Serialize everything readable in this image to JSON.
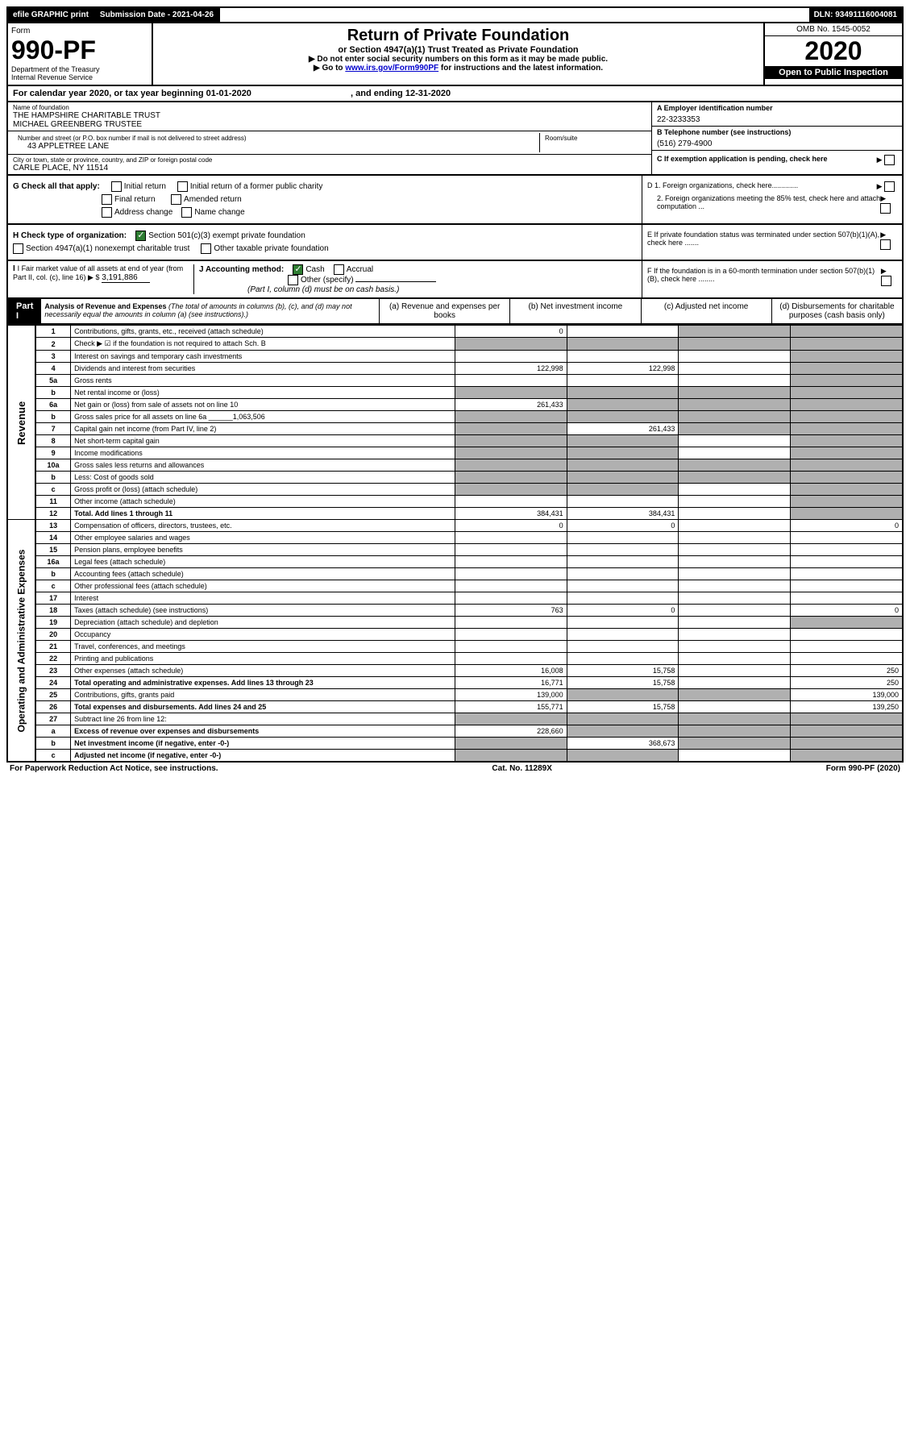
{
  "top_bar": {
    "efile": "efile GRAPHIC print",
    "submission": "Submission Date - 2021-04-26",
    "dln": "DLN: 93491116004081"
  },
  "header": {
    "form_label": "Form",
    "form_number": "990-PF",
    "dept": "Department of the Treasury",
    "irs": "Internal Revenue Service",
    "title": "Return of Private Foundation",
    "subtitle": "or Section 4947(a)(1) Trust Treated as Private Foundation",
    "note1": "▶ Do not enter social security numbers on this form as it may be made public.",
    "note2_pre": "▶ Go to ",
    "note2_link": "www.irs.gov/Form990PF",
    "note2_post": " for instructions and the latest information.",
    "omb": "OMB No. 1545-0052",
    "year": "2020",
    "open": "Open to Public Inspection"
  },
  "cal_year": {
    "text_pre": "For calendar year 2020, or tax year beginning ",
    "begin": "01-01-2020",
    "text_mid": " , and ending ",
    "end": "12-31-2020"
  },
  "org": {
    "name_label": "Name of foundation",
    "name1": "THE HAMPSHIRE CHARITABLE TRUST",
    "name2": "MICHAEL GREENBERG TRUSTEE",
    "addr_label": "Number and street (or P.O. box number if mail is not delivered to street address)",
    "addr": "43 APPLETREE LANE",
    "room_label": "Room/suite",
    "city_label": "City or town, state or province, country, and ZIP or foreign postal code",
    "city": "CARLE PLACE, NY  11514",
    "ein_label": "A Employer identification number",
    "ein": "22-3233353",
    "phone_label": "B Telephone number (see instructions)",
    "phone": "(516) 279-4900",
    "c_label": "C If exemption application is pending, check here"
  },
  "sectionG": {
    "label": "G Check all that apply:",
    "opts": {
      "initial": "Initial return",
      "initial_former": "Initial return of a former public charity",
      "final": "Final return",
      "amended": "Amended return",
      "address": "Address change",
      "name": "Name change"
    }
  },
  "sectionH": {
    "label": "H Check type of organization:",
    "opt1": "Section 501(c)(3) exempt private foundation",
    "opt2": "Section 4947(a)(1) nonexempt charitable trust",
    "opt3": "Other taxable private foundation"
  },
  "sectionD": {
    "d1": "D 1. Foreign organizations, check here.............",
    "d2": "2. Foreign organizations meeting the 85% test, check here and attach computation ...",
    "e": "E  If private foundation status was terminated under section 507(b)(1)(A), check here .......",
    "f": "F  If the foundation is in a 60-month termination under section 507(b)(1)(B), check here ........"
  },
  "sectionI": {
    "label": "I Fair market value of all assets at end of year (from Part II, col. (c), line 16) ▶ $",
    "value": "3,191,886"
  },
  "sectionJ": {
    "label": "J Accounting method:",
    "cash": "Cash",
    "accrual": "Accrual",
    "other": "Other (specify)",
    "note": "(Part I, column (d) must be on cash basis.)"
  },
  "part1": {
    "label": "Part I",
    "title": "Analysis of Revenue and Expenses",
    "subtitle": "(The total of amounts in columns (b), (c), and (d) may not necessarily equal the amounts in column (a) (see instructions).)",
    "cols": {
      "a": "(a)   Revenue and expenses per books",
      "b": "(b)   Net investment income",
      "c": "(c)   Adjusted net income",
      "d": "(d)   Disbursements for charitable purposes (cash basis only)"
    }
  },
  "side_labels": {
    "revenue": "Revenue",
    "expenses": "Operating and Administrative Expenses"
  },
  "rows": [
    {
      "n": "1",
      "desc": "Contributions, gifts, grants, etc., received (attach schedule)",
      "a": "0",
      "b": "",
      "c": "g",
      "d": "g"
    },
    {
      "n": "2",
      "desc": "Check ▶ ☑ if the foundation is not required to attach Sch. B",
      "a": "g",
      "b": "g",
      "c": "g",
      "d": "g"
    },
    {
      "n": "3",
      "desc": "Interest on savings and temporary cash investments",
      "a": "",
      "b": "",
      "c": "",
      "d": "g"
    },
    {
      "n": "4",
      "desc": "Dividends and interest from securities",
      "a": "122,998",
      "b": "122,998",
      "c": "",
      "d": "g"
    },
    {
      "n": "5a",
      "desc": "Gross rents",
      "a": "",
      "b": "",
      "c": "",
      "d": "g"
    },
    {
      "n": "b",
      "desc": "Net rental income or (loss)",
      "a": "g",
      "b": "g",
      "c": "g",
      "d": "g"
    },
    {
      "n": "6a",
      "desc": "Net gain or (loss) from sale of assets not on line 10",
      "a": "261,433",
      "b": "g",
      "c": "g",
      "d": "g"
    },
    {
      "n": "b",
      "desc": "Gross sales price for all assets on line 6a ______1,063,506",
      "a": "g",
      "b": "g",
      "c": "g",
      "d": "g"
    },
    {
      "n": "7",
      "desc": "Capital gain net income (from Part IV, line 2)",
      "a": "g",
      "b": "261,433",
      "c": "g",
      "d": "g"
    },
    {
      "n": "8",
      "desc": "Net short-term capital gain",
      "a": "g",
      "b": "g",
      "c": "",
      "d": "g"
    },
    {
      "n": "9",
      "desc": "Income modifications",
      "a": "g",
      "b": "g",
      "c": "",
      "d": "g"
    },
    {
      "n": "10a",
      "desc": "Gross sales less returns and allowances",
      "a": "g",
      "b": "g",
      "c": "g",
      "d": "g"
    },
    {
      "n": "b",
      "desc": "Less: Cost of goods sold",
      "a": "g",
      "b": "g",
      "c": "g",
      "d": "g"
    },
    {
      "n": "c",
      "desc": "Gross profit or (loss) (attach schedule)",
      "a": "g",
      "b": "g",
      "c": "",
      "d": "g"
    },
    {
      "n": "11",
      "desc": "Other income (attach schedule)",
      "a": "",
      "b": "",
      "c": "",
      "d": "g"
    },
    {
      "n": "12",
      "desc": "Total. Add lines 1 through 11",
      "a": "384,431",
      "b": "384,431",
      "c": "",
      "d": "g",
      "bold": true
    },
    {
      "n": "13",
      "desc": "Compensation of officers, directors, trustees, etc.",
      "a": "0",
      "b": "0",
      "c": "",
      "d": "0"
    },
    {
      "n": "14",
      "desc": "Other employee salaries and wages",
      "a": "",
      "b": "",
      "c": "",
      "d": ""
    },
    {
      "n": "15",
      "desc": "Pension plans, employee benefits",
      "a": "",
      "b": "",
      "c": "",
      "d": ""
    },
    {
      "n": "16a",
      "desc": "Legal fees (attach schedule)",
      "a": "",
      "b": "",
      "c": "",
      "d": ""
    },
    {
      "n": "b",
      "desc": "Accounting fees (attach schedule)",
      "a": "",
      "b": "",
      "c": "",
      "d": ""
    },
    {
      "n": "c",
      "desc": "Other professional fees (attach schedule)",
      "a": "",
      "b": "",
      "c": "",
      "d": ""
    },
    {
      "n": "17",
      "desc": "Interest",
      "a": "",
      "b": "",
      "c": "",
      "d": ""
    },
    {
      "n": "18",
      "desc": "Taxes (attach schedule) (see instructions)",
      "a": "763",
      "b": "0",
      "c": "",
      "d": "0"
    },
    {
      "n": "19",
      "desc": "Depreciation (attach schedule) and depletion",
      "a": "",
      "b": "",
      "c": "",
      "d": "g"
    },
    {
      "n": "20",
      "desc": "Occupancy",
      "a": "",
      "b": "",
      "c": "",
      "d": ""
    },
    {
      "n": "21",
      "desc": "Travel, conferences, and meetings",
      "a": "",
      "b": "",
      "c": "",
      "d": ""
    },
    {
      "n": "22",
      "desc": "Printing and publications",
      "a": "",
      "b": "",
      "c": "",
      "d": ""
    },
    {
      "n": "23",
      "desc": "Other expenses (attach schedule)",
      "a": "16,008",
      "b": "15,758",
      "c": "",
      "d": "250"
    },
    {
      "n": "24",
      "desc": "Total operating and administrative expenses. Add lines 13 through 23",
      "a": "16,771",
      "b": "15,758",
      "c": "",
      "d": "250",
      "bold": true
    },
    {
      "n": "25",
      "desc": "Contributions, gifts, grants paid",
      "a": "139,000",
      "b": "g",
      "c": "g",
      "d": "139,000"
    },
    {
      "n": "26",
      "desc": "Total expenses and disbursements. Add lines 24 and 25",
      "a": "155,771",
      "b": "15,758",
      "c": "",
      "d": "139,250",
      "bold": true
    },
    {
      "n": "27",
      "desc": "Subtract line 26 from line 12:",
      "a": "g",
      "b": "g",
      "c": "g",
      "d": "g"
    },
    {
      "n": "a",
      "desc": "Excess of revenue over expenses and disbursements",
      "a": "228,660",
      "b": "g",
      "c": "g",
      "d": "g",
      "bold": true
    },
    {
      "n": "b",
      "desc": "Net investment income (if negative, enter -0-)",
      "a": "g",
      "b": "368,673",
      "c": "g",
      "d": "g",
      "bold": true
    },
    {
      "n": "c",
      "desc": "Adjusted net income (if negative, enter -0-)",
      "a": "g",
      "b": "g",
      "c": "",
      "d": "g",
      "bold": true
    }
  ],
  "footer": {
    "left": "For Paperwork Reduction Act Notice, see instructions.",
    "mid": "Cat. No. 11289X",
    "right": "Form 990-PF (2020)"
  }
}
